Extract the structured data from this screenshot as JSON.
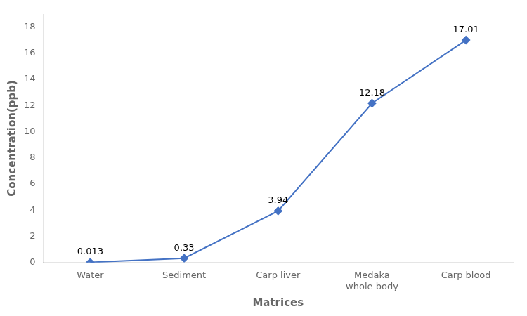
{
  "chart_data": {
    "type": "line",
    "categories": [
      "Water",
      "Sediment",
      "Carp liver",
      "Medaka\nwhole body",
      "Carp blood"
    ],
    "values": [
      0.013,
      0.33,
      3.94,
      12.18,
      17.01
    ],
    "color": "#4472C4",
    "marker": "diamond",
    "xlabel": "Matrices",
    "ylabel": "Concentration(ppb)",
    "ylim": [
      0,
      19
    ],
    "yticks": [
      0,
      2,
      4,
      6,
      8,
      10,
      12,
      14,
      16,
      18
    ],
    "grid": false,
    "data_labels": true
  }
}
